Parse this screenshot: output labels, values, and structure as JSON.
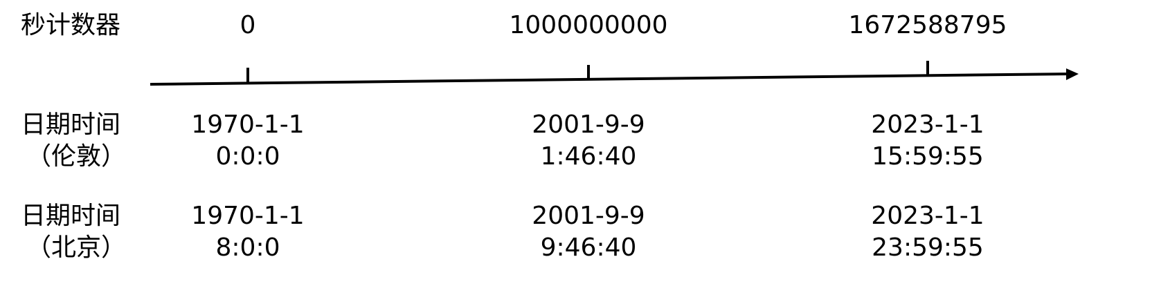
{
  "labels": {
    "seconds": "秒计数器",
    "london": {
      "line1": "日期时间",
      "line2": "（伦敦）"
    },
    "beijing": {
      "line1": "日期时间",
      "line2": "（北京）"
    }
  },
  "points": [
    {
      "seconds": "0",
      "london": {
        "date": "1970-1-1",
        "time": "0:0:0"
      },
      "beijing": {
        "date": "1970-1-1",
        "time": "8:0:0"
      }
    },
    {
      "seconds": "1000000000",
      "london": {
        "date": "2001-9-9",
        "time": "1:46:40"
      },
      "beijing": {
        "date": "2001-9-9",
        "time": "9:46:40"
      }
    },
    {
      "seconds": "1672588795",
      "london": {
        "date": "2023-1-1",
        "time": "15:59:55"
      },
      "beijing": {
        "date": "2023-1-1",
        "time": "23:59:55"
      }
    }
  ],
  "colors": {
    "ink": "#000000",
    "background": "#ffffff"
  }
}
